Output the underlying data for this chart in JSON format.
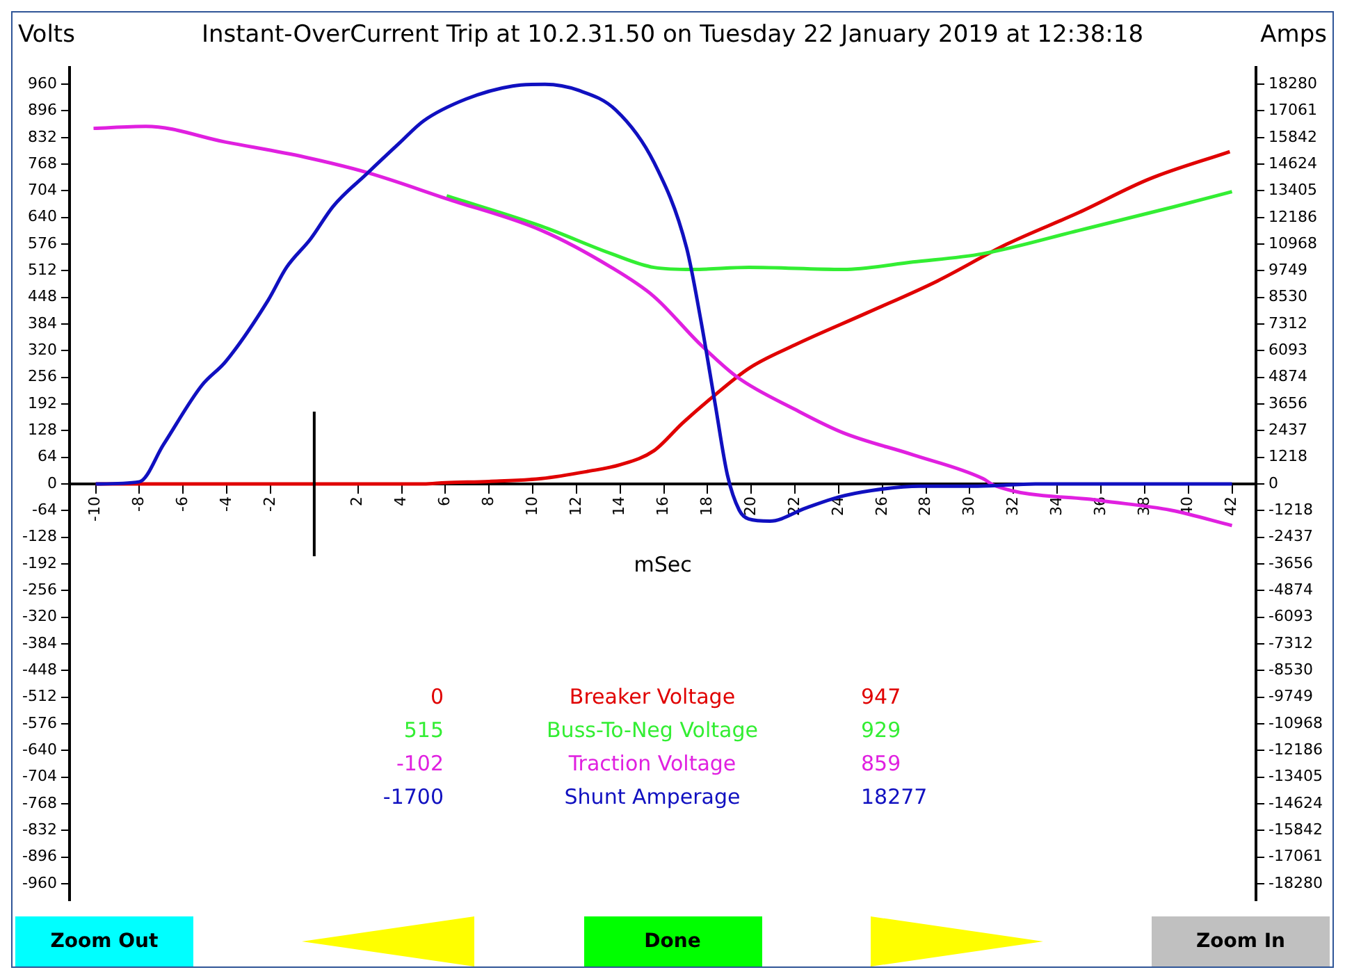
{
  "chart_data": {
    "type": "line",
    "title": "Instant-OverCurrent Trip at 10.2.31.50 on Tuesday 22 January 2019 at 12:38:18",
    "ylabel": "Volts",
    "y2label": "Amps",
    "xlabel": "mSec",
    "series": [
      {
        "name": "Breaker Voltage",
        "color": "#e00000",
        "x": [
          -10,
          0,
          5,
          6,
          8,
          10.4,
          12.5,
          14,
          15.55,
          16.85,
          18.3,
          19.9,
          22,
          25.3,
          28.5,
          31.7,
          35,
          38.2,
          41.9
        ],
        "values": [
          0,
          0,
          0,
          3,
          6,
          13,
          30,
          46,
          80,
          146,
          212,
          278,
          334,
          411,
          487,
          576,
          652,
          732,
          798
        ]
      },
      {
        "name": "Buss-To-Neg Voltage",
        "color": "#33ee33",
        "x": [
          6.06,
          10.4,
          13.6,
          15.55,
          17.3,
          19.9,
          24.2,
          27.4,
          30.6,
          35,
          39.3,
          42
        ],
        "values": [
          692,
          619,
          553,
          520,
          515,
          520,
          515,
          533,
          553,
          609,
          665,
          702
        ]
      },
      {
        "name": "Traction Voltage",
        "color": "#e020e0",
        "x": [
          -10.1,
          -7.7,
          -4.05,
          -0.43,
          2.42,
          6.06,
          10.4,
          13.6,
          15.55,
          17.69,
          19.4,
          22,
          24.2,
          27.4,
          30.6,
          31.1,
          36,
          39.2,
          42
        ],
        "values": [
          854,
          859,
          821,
          785,
          748,
          685,
          609,
          520,
          450,
          334,
          255,
          179,
          123,
          70,
          13,
          -3,
          -40,
          -63,
          -100
        ]
      },
      {
        "name": "Shunt Amperage",
        "color": "#1010c0",
        "axis": "y2",
        "x": [
          -10,
          -8,
          -6.9,
          -5.15,
          -4.05,
          -2.11,
          -1.27,
          -0.17,
          0.87,
          2.42,
          3.91,
          5,
          6.94,
          9.08,
          10.56,
          12.1,
          13.8,
          15.55,
          17.04,
          17.69,
          18.34,
          18.91,
          19.45,
          19.88,
          20.85,
          22.5,
          24,
          25.5,
          27.7,
          30.35,
          33,
          42
        ],
        "values": [
          0,
          100,
          1800,
          4500,
          5600,
          8400,
          9900,
          11200,
          12700,
          14200,
          15600,
          16600,
          17600,
          18200,
          18277,
          18000,
          17100,
          14700,
          10800,
          7500,
          3700,
          400,
          -1200,
          -1600,
          -1700,
          -1100,
          -600,
          -300,
          -100,
          -100,
          0,
          0
        ]
      }
    ],
    "xlim": [
      -11.2,
      43.1
    ],
    "xticks": [
      -10,
      -8,
      -6,
      -4,
      -2,
      2,
      4,
      6,
      8,
      10,
      12,
      14,
      16,
      18,
      20,
      22,
      24,
      26,
      28,
      30,
      32,
      34,
      36,
      38,
      40,
      42
    ],
    "ylim": [
      -1000,
      1000
    ],
    "yticks": [
      -960,
      -896,
      -832,
      -768,
      -704,
      -640,
      -576,
      -512,
      -448,
      -384,
      -320,
      -256,
      -192,
      -128,
      -64,
      0,
      64,
      128,
      192,
      256,
      320,
      384,
      448,
      512,
      576,
      640,
      704,
      768,
      832,
      896,
      960
    ],
    "y2lim": [
      -19042,
      19042
    ],
    "y2ticks": [
      -18280,
      -17061,
      -15842,
      -14624,
      -13405,
      -12186,
      -10968,
      -9749,
      -8530,
      -7312,
      -6093,
      -4874,
      -3656,
      -2437,
      -1218,
      0,
      1218,
      2437,
      3656,
      4874,
      6093,
      7312,
      8530,
      9749,
      10968,
      12186,
      13405,
      14624,
      15842,
      17061,
      18280
    ],
    "ref_lines": [
      {
        "axis": "x",
        "value": 0,
        "color": "#000000"
      }
    ],
    "legend": "bottom",
    "grid": false,
    "annotations": [
      "0",
      "947",
      "515",
      "929",
      "-102",
      "859",
      "-1700",
      "18277",
      "Zoom Out",
      "Done",
      "Zoom In"
    ]
  }
}
